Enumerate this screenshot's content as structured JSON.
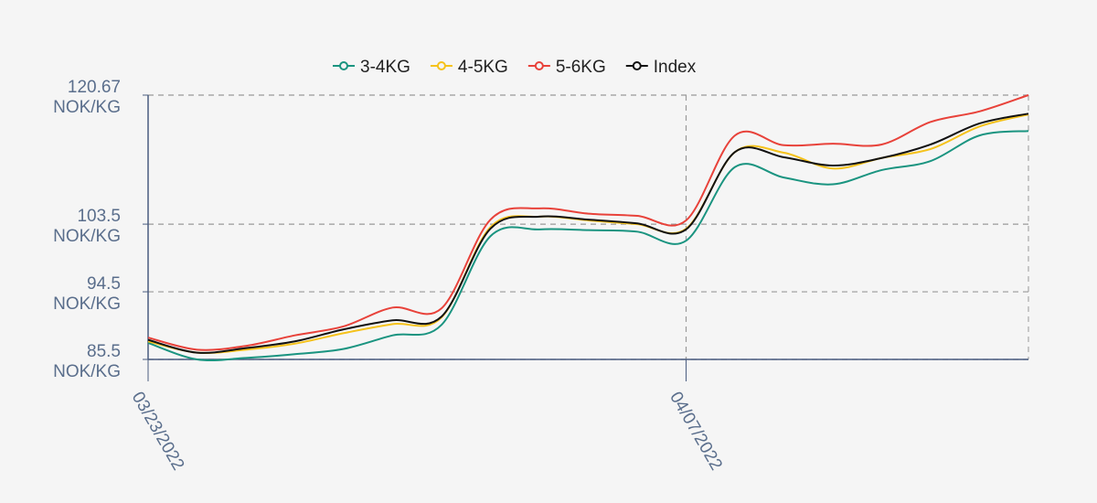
{
  "chart_data": {
    "type": "line",
    "categories": [
      "03/23/2022",
      null,
      null,
      null,
      null,
      null,
      null,
      null,
      null,
      null,
      null,
      "04/07/2022",
      null,
      null,
      null,
      null,
      null,
      null,
      null
    ],
    "series": [
      {
        "name": "3-4KG",
        "color": "#1a9480",
        "values": [
          87.7,
          85.5,
          85.7,
          86.2,
          86.9,
          88.7,
          90.1,
          101.9,
          102.8,
          102.7,
          102.5,
          101.3,
          111.1,
          109.7,
          108.8,
          110.7,
          111.9,
          115.3,
          115.9
        ]
      },
      {
        "name": "4-5KG",
        "color": "#f5c21b",
        "values": [
          87.9,
          86.4,
          86.8,
          87.6,
          89.0,
          90.2,
          91.1,
          103.1,
          104.5,
          104.0,
          103.5,
          102.9,
          113.1,
          113.0,
          110.9,
          112.3,
          113.5,
          116.5,
          118.1
        ]
      },
      {
        "name": "5-6KG",
        "color": "#e8423a",
        "values": [
          88.4,
          86.8,
          87.3,
          88.7,
          89.9,
          92.4,
          92.3,
          104.1,
          105.6,
          104.9,
          104.6,
          104.0,
          115.3,
          114.0,
          114.2,
          114.1,
          117.1,
          118.5,
          120.67
        ]
      },
      {
        "name": "Index",
        "color": "#111111",
        "values": [
          88.1,
          86.4,
          87.0,
          87.9,
          89.5,
          90.7,
          91.2,
          102.9,
          104.5,
          104.1,
          103.6,
          102.8,
          113.1,
          112.4,
          111.3,
          112.3,
          114.1,
          116.9,
          118.2
        ]
      }
    ],
    "ylim": [
      85.5,
      120.67
    ],
    "yticks": [
      {
        "value": 85.5,
        "label": "85.5 NOK/KG"
      },
      {
        "value": 94.5,
        "label": "94.5 NOK/KG"
      },
      {
        "value": 103.5,
        "label": "103.5 NOK/KG"
      },
      {
        "value": 120.67,
        "label": "120.67 NOK/KG"
      }
    ],
    "grid": true
  }
}
